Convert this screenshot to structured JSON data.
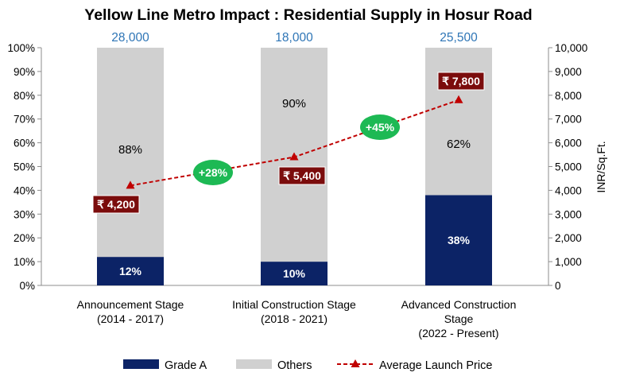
{
  "chart_data": {
    "type": "bar",
    "title": "Yellow Line Metro Impact : Residential Supply in Hosur Road",
    "categories": [
      [
        "Announcement Stage",
        "(2014 - 2017)"
      ],
      [
        "Initial Construction Stage",
        "(2018 - 2021)"
      ],
      [
        "Advanced Construction",
        "Stage",
        "(2022 - Present)"
      ]
    ],
    "totals": [
      "28,000",
      "18,000",
      "25,500"
    ],
    "series": [
      {
        "name": "Grade A",
        "values": [
          12,
          10,
          38
        ],
        "labels": [
          "12%",
          "10%",
          "38%"
        ],
        "color": "#0c2366"
      },
      {
        "name": "Others",
        "values": [
          88,
          90,
          62
        ],
        "labels": [
          "88%",
          "90%",
          "62%"
        ],
        "color": "#d0d0d0"
      }
    ],
    "line_series": {
      "name": "Average Launch Price",
      "values": [
        4200,
        5400,
        7800
      ],
      "labels": [
        "₹ 4,200",
        "₹ 5,400",
        "₹ 7,800"
      ],
      "color": "#c00000",
      "label_bg": "#7b0c0c"
    },
    "growth_labels": [
      "+28%",
      "+45%"
    ],
    "growth_color": "#1db954",
    "total_color": "#2e75b6",
    "y_left": {
      "ticks": [
        "0%",
        "10%",
        "20%",
        "30%",
        "40%",
        "50%",
        "60%",
        "70%",
        "80%",
        "90%",
        "100%"
      ],
      "ylim": [
        0,
        100
      ]
    },
    "y_right": {
      "ticks": [
        "0",
        "1,000",
        "2,000",
        "3,000",
        "4,000",
        "5,000",
        "6,000",
        "7,000",
        "8,000",
        "9,000",
        "10,000"
      ],
      "ylim": [
        0,
        10000
      ],
      "label": "INR/Sq.Ft."
    },
    "legend_position": "bottom",
    "grid": false
  }
}
